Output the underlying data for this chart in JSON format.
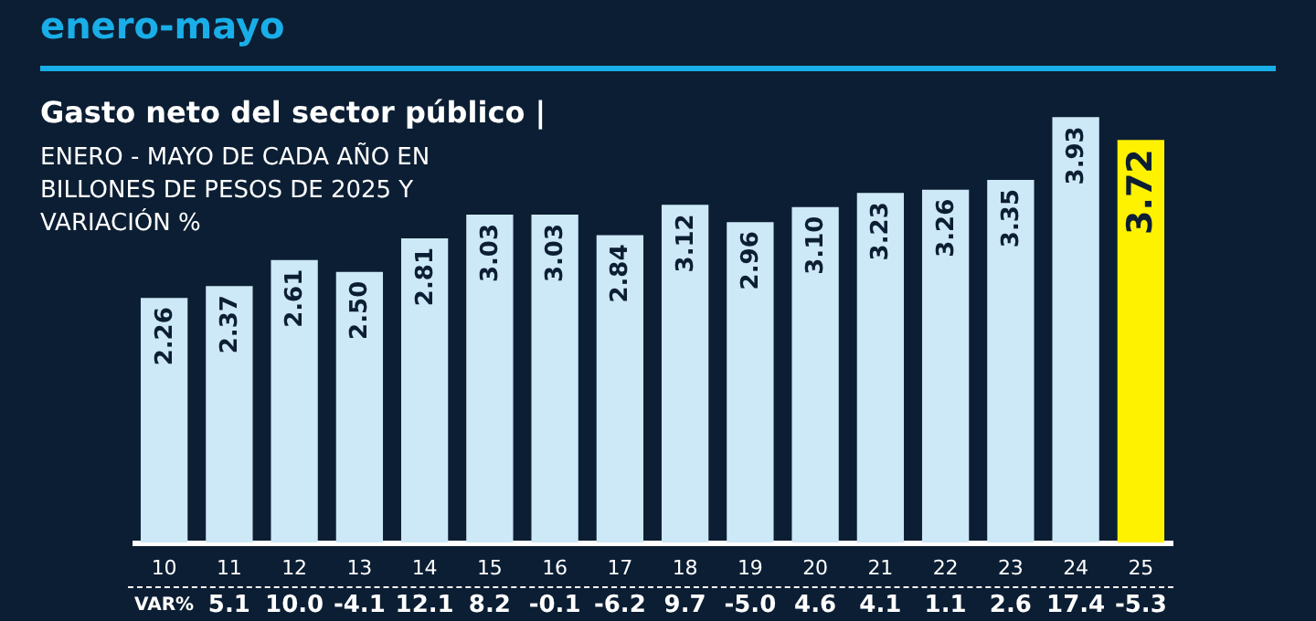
{
  "chart_data": {
    "type": "bar",
    "title": "enero-mayo",
    "subtitle": "Gasto neto del sector público |",
    "annotations": [
      "ENERO - MAYO DE CADA AÑO EN BILLONES DE PESOS DE 2025 Y VARIACIÓN %",
      "VAR%",
      "5.1",
      "10.0",
      "-4.1",
      "12.1",
      "8.2",
      "-0.1",
      "-6.2",
      "9.7",
      "-5.0",
      "4.6",
      "4.1",
      "1.1",
      "2.6",
      "17.4",
      "-5.3"
    ],
    "categories": [
      "10",
      "11",
      "12",
      "13",
      "14",
      "15",
      "16",
      "17",
      "18",
      "19",
      "20",
      "21",
      "22",
      "23",
      "24",
      "25"
    ],
    "values": [
      2.26,
      2.37,
      2.61,
      2.5,
      2.81,
      3.03,
      3.03,
      2.84,
      3.12,
      2.96,
      3.1,
      3.23,
      3.26,
      3.35,
      3.93,
      3.72
    ],
    "colors": [
      "#cde8f6",
      "#cde8f6",
      "#cde8f6",
      "#cde8f6",
      "#cde8f6",
      "#cde8f6",
      "#cde8f6",
      "#cde8f6",
      "#cde8f6",
      "#cde8f6",
      "#cde8f6",
      "#cde8f6",
      "#cde8f6",
      "#cde8f6",
      "#cde8f6",
      "#fff200"
    ],
    "value_labels": [
      "2.26",
      "2.37",
      "2.61",
      "2.50",
      "2.81",
      "3.03",
      "3.03",
      "2.84",
      "3.12",
      "2.96",
      "3.10",
      "3.23",
      "3.26",
      "3.35",
      "3.93",
      "3.72"
    ]
  }
}
